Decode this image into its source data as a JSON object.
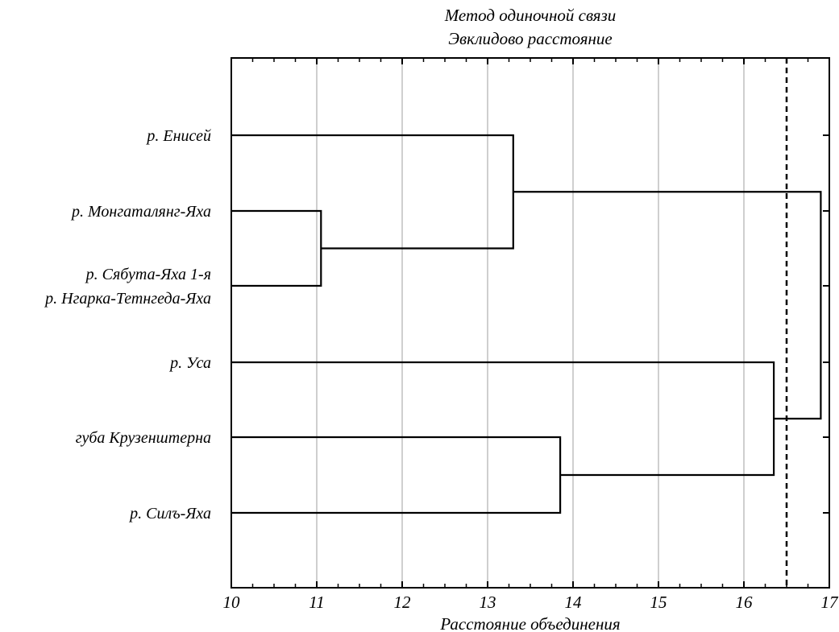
{
  "chart_data": {
    "type": "dendrogram",
    "title": "Метод одиночной связи",
    "subtitle": "Эвклидово расстояние",
    "xlabel": "Расстояние объединения",
    "xlim": [
      10,
      17
    ],
    "xticks": [
      "10",
      "11",
      "12",
      "13",
      "14",
      "15",
      "16",
      "17"
    ],
    "grid": "vertical",
    "cut_line": 16.5,
    "leaves": [
      "р. Енисей",
      "р. Монгаталянг-Яха",
      "р. Сябута-Яха 1-я",
      "р. Нгарка-Тетнгеда-Яха",
      "р. Уса",
      "губа Крузенштерна",
      "р. Силъ-Яха"
    ],
    "merges": [
      {
        "id": "m1",
        "children": [
          "leaf1",
          "leaf2"
        ],
        "distance": 11.05
      },
      {
        "id": "m2",
        "children": [
          "leaf0",
          "m1"
        ],
        "distance": 13.3
      },
      {
        "id": "m3",
        "children": [
          "leaf5",
          "leaf6"
        ],
        "distance": 13.85
      },
      {
        "id": "m4",
        "children": [
          "leaf4",
          "m3"
        ],
        "distance": 16.35
      },
      {
        "id": "m5",
        "children": [
          "m2",
          "m4"
        ],
        "distance": 16.9
      }
    ]
  }
}
